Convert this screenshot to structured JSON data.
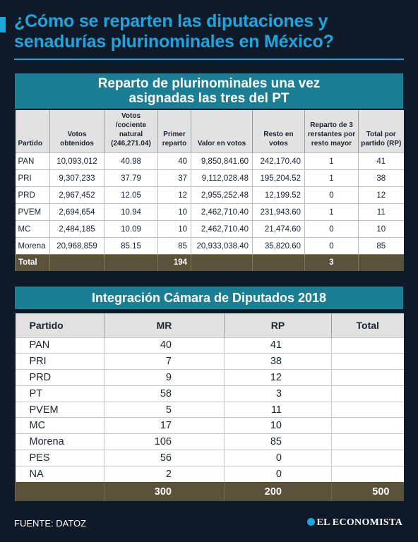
{
  "title": "¿Cómo se reparten las diputaciones y senadurías plurinominales en México?",
  "table1": {
    "heading_line1": "Reparto de plurinominales una vez",
    "heading_line2": "asignadas las tres del PT",
    "columns": [
      "Partido",
      "Votos obtenidos",
      "Votos /cociente natural (246,271.04)",
      "Primer reparto",
      "Valor en votos",
      "Resto en votos",
      "Reparto de 3 rerstantes por resto mayor",
      "Total por partido (RP)"
    ],
    "rows": [
      [
        "PAN",
        "10,093,012",
        "40.98",
        "40",
        "9,850,841.60",
        "242,170.40",
        "1",
        "41"
      ],
      [
        "PRI",
        "9,307,233",
        "37.79",
        "37",
        "9,112,028.48",
        "195,204.52",
        "1",
        "38"
      ],
      [
        "PRD",
        "2,967,452",
        "12.05",
        "12",
        "2,955,252.48",
        "12,199.52",
        "0",
        "12"
      ],
      [
        "PVEM",
        "2,694,654",
        "10.94",
        "10",
        "2,462,710.40",
        "231,943.60",
        "1",
        "11"
      ],
      [
        "MC",
        "2,484,185",
        "10.09",
        "10",
        "2,462,710.40",
        "21,474.60",
        "0",
        "10"
      ],
      [
        "Morena",
        "20,968,859",
        "85.15",
        "85",
        "20,933,038.40",
        "35,820.60",
        "0",
        "85"
      ]
    ],
    "total": [
      "Total",
      "",
      "",
      "194",
      "",
      "",
      "3",
      ""
    ]
  },
  "table2": {
    "heading": "Integración Cámara de Diputados 2018",
    "columns": [
      "Partido",
      "MR",
      "RP",
      "Total"
    ],
    "rows": [
      [
        "PAN",
        "40",
        "41",
        ""
      ],
      [
        "PRI",
        "7",
        "38",
        ""
      ],
      [
        "PRD",
        "9",
        "12",
        ""
      ],
      [
        "PT",
        "58",
        "3",
        ""
      ],
      [
        "PVEM",
        "5",
        "11",
        ""
      ],
      [
        "MC",
        "17",
        "10",
        ""
      ],
      [
        "Morena",
        "106",
        "85",
        ""
      ],
      [
        "PES",
        "56",
        "0",
        ""
      ],
      [
        "NA",
        "2",
        "0",
        ""
      ]
    ],
    "total": [
      "",
      "300",
      "200",
      "500"
    ]
  },
  "footer": {
    "source": "FUENTE: DATOZ",
    "logo": "EL ECONOMISTA"
  },
  "colors": {
    "background": "#0f1a29",
    "accent": "#1aa6de",
    "header_band": "#1a7f94",
    "total_row": "#5a5239"
  }
}
